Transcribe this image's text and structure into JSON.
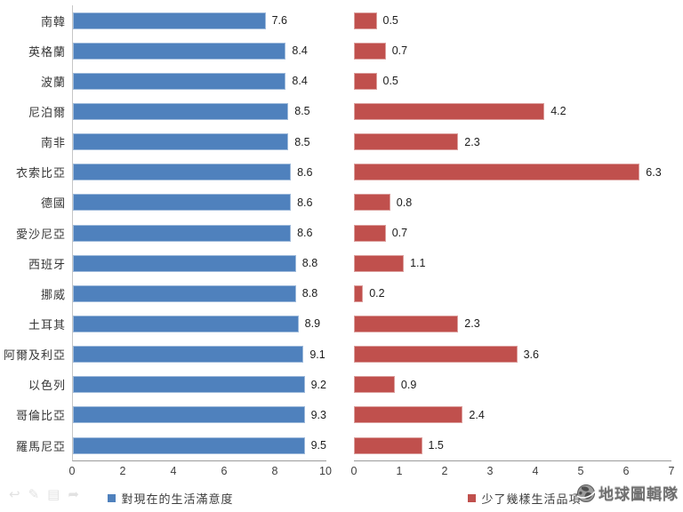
{
  "watermark": {
    "text": "地球圖輯隊",
    "icon": "globe-icon"
  },
  "corner_icons": [
    {
      "name": "undo-arrow-icon",
      "glyph": "↩"
    },
    {
      "name": "pencil-icon",
      "glyph": "✎"
    },
    {
      "name": "card-icon",
      "glyph": "▤"
    },
    {
      "name": "share-arrow-icon",
      "glyph": "➦"
    }
  ],
  "chart_data": {
    "type": "bar",
    "orientation": "horizontal",
    "grid": false,
    "categories": [
      "南韓",
      "英格蘭",
      "波蘭",
      "尼泊爾",
      "南非",
      "衣索比亞",
      "德國",
      "愛沙尼亞",
      "西班牙",
      "挪威",
      "土耳其",
      "阿爾及利亞",
      "以色列",
      "哥倫比亞",
      "羅馬尼亞"
    ],
    "series": [
      {
        "name": "對現在的生活滿意度",
        "color": "#4F81BD",
        "values": [
          7.6,
          8.4,
          8.4,
          8.5,
          8.5,
          8.6,
          8.6,
          8.6,
          8.8,
          8.8,
          8.9,
          9.1,
          9.2,
          9.3,
          9.5
        ],
        "xlim": [
          0,
          10
        ],
        "ticks": [
          0,
          2,
          4,
          6,
          8,
          10
        ],
        "legend_position": "bottom"
      },
      {
        "name": "少了幾樣生活品項",
        "color": "#C0504D",
        "values": [
          0.5,
          0.7,
          0.5,
          4.2,
          2.3,
          6.3,
          0.8,
          0.7,
          1.1,
          0.2,
          2.3,
          3.6,
          0.9,
          2.4,
          1.5
        ],
        "xlim": [
          0,
          7
        ],
        "ticks": [
          0,
          1,
          2,
          3,
          4,
          5,
          6,
          7
        ],
        "legend_position": "bottom"
      }
    ]
  }
}
